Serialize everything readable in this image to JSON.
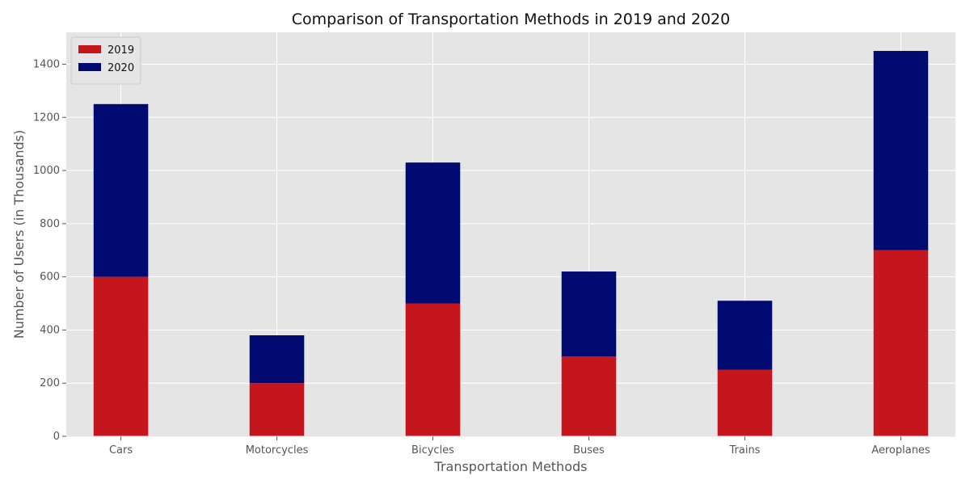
{
  "chart_data": {
    "type": "bar",
    "stacked": true,
    "title": "Comparison of Transportation Methods in 2019 and 2020",
    "xlabel": "Transportation Methods",
    "ylabel": "Number of Users (in Thousands)",
    "categories": [
      "Cars",
      "Motorcycles",
      "Bicycles",
      "Buses",
      "Trains",
      "Aeroplanes"
    ],
    "series": [
      {
        "name": "2019",
        "values": [
          600,
          200,
          500,
          300,
          250,
          700
        ],
        "color": "#c4161c"
      },
      {
        "name": "2020",
        "values": [
          650,
          180,
          530,
          320,
          260,
          750
        ],
        "color": "#000a70"
      }
    ],
    "ylim": [
      0,
      1520
    ],
    "yticks": [
      0,
      200,
      400,
      600,
      800,
      1000,
      1200,
      1400
    ],
    "grid": true,
    "legend_position": "top-left",
    "background_color": "#e5e5e5",
    "grid_color": "#ffffff",
    "text_color": "#555555"
  }
}
